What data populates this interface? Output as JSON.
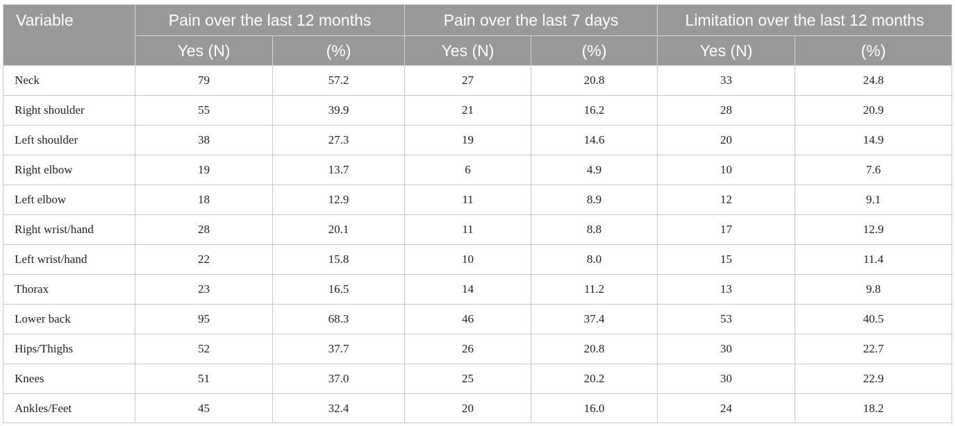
{
  "table": {
    "header": {
      "variable": "Variable",
      "groups": [
        "Pain over the last 12 months",
        "Pain over the last 7 days",
        "Limitation over the last 12 months"
      ],
      "sub": [
        "Yes (N)",
        "(%)",
        "Yes (N)",
        "(%)",
        "Yes (N)",
        "(%)"
      ]
    },
    "rows": [
      {
        "variable": "Neck",
        "values": [
          "79",
          "57.2",
          "27",
          "20.8",
          "33",
          "24.8"
        ]
      },
      {
        "variable": "Right shoulder",
        "values": [
          "55",
          "39.9",
          "21",
          "16.2",
          "28",
          "20.9"
        ]
      },
      {
        "variable": "Left shoulder",
        "values": [
          "38",
          "27.3",
          "19",
          "14.6",
          "20",
          "14.9"
        ]
      },
      {
        "variable": "Right elbow",
        "values": [
          "19",
          "13.7",
          "6",
          "4.9",
          "10",
          "7.6"
        ]
      },
      {
        "variable": "Left elbow",
        "values": [
          "18",
          "12.9",
          "11",
          "8.9",
          "12",
          "9.1"
        ]
      },
      {
        "variable": "Right wrist/hand",
        "values": [
          "28",
          "20.1",
          "11",
          "8.8",
          "17",
          "12.9"
        ]
      },
      {
        "variable": "Left wrist/hand",
        "values": [
          "22",
          "15.8",
          "10",
          "8.0",
          "15",
          "11.4"
        ]
      },
      {
        "variable": "Thorax",
        "values": [
          "23",
          "16.5",
          "14",
          "11.2",
          "13",
          "9.8"
        ]
      },
      {
        "variable": "Lower back",
        "values": [
          "95",
          "68.3",
          "46",
          "37.4",
          "53",
          "40.5"
        ]
      },
      {
        "variable": "Hips/Thighs",
        "values": [
          "52",
          "37.7",
          "26",
          "20.8",
          "30",
          "22.7"
        ]
      },
      {
        "variable": "Knees",
        "values": [
          "51",
          "37.0",
          "25",
          "20.2",
          "30",
          "22.9"
        ]
      },
      {
        "variable": "Ankles/Feet",
        "values": [
          "45",
          "32.4",
          "20",
          "16.0",
          "24",
          "18.2"
        ]
      }
    ]
  },
  "colors": {
    "header_bg": "#999999",
    "header_text": "#ffffff",
    "grid": "#c8c8c8"
  }
}
